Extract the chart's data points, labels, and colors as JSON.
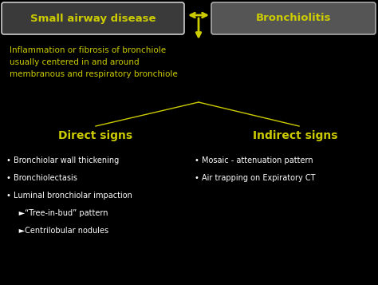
{
  "bg_color": "#000000",
  "box1_text": "Small airway disease",
  "box2_text": "Bronchiolitis",
  "box1_color": "#3a3a3a",
  "box2_color": "#555555",
  "box_edge_color1": "#cccccc",
  "box_edge_color2": "#aaaaaa",
  "box_text_color": "#cccc00",
  "arrow_color": "#cccc00",
  "description_text": "Inflammation or fibrosis of bronchiole\nusually centered in and around\nmembranous and respiratory bronchiole",
  "description_color": "#cccc00",
  "direct_title": "Direct signs",
  "indirect_title": "Indirect signs",
  "section_title_color": "#cccc00",
  "direct_items": [
    "• Bronchiolar wall thickening",
    "• Bronchiolectasis",
    "• Luminal bronchiolar impaction",
    "     ►“Tree-in-bud” pattern",
    "     ►Centrilobular nodules"
  ],
  "indirect_items": [
    "• Mosaic - attenuation pattern",
    "• Air trapping on Expiratory CT"
  ],
  "item_color": "#ffffff",
  "line_color": "#cccc00",
  "figsize": [
    4.74,
    3.57
  ],
  "dpi": 100
}
